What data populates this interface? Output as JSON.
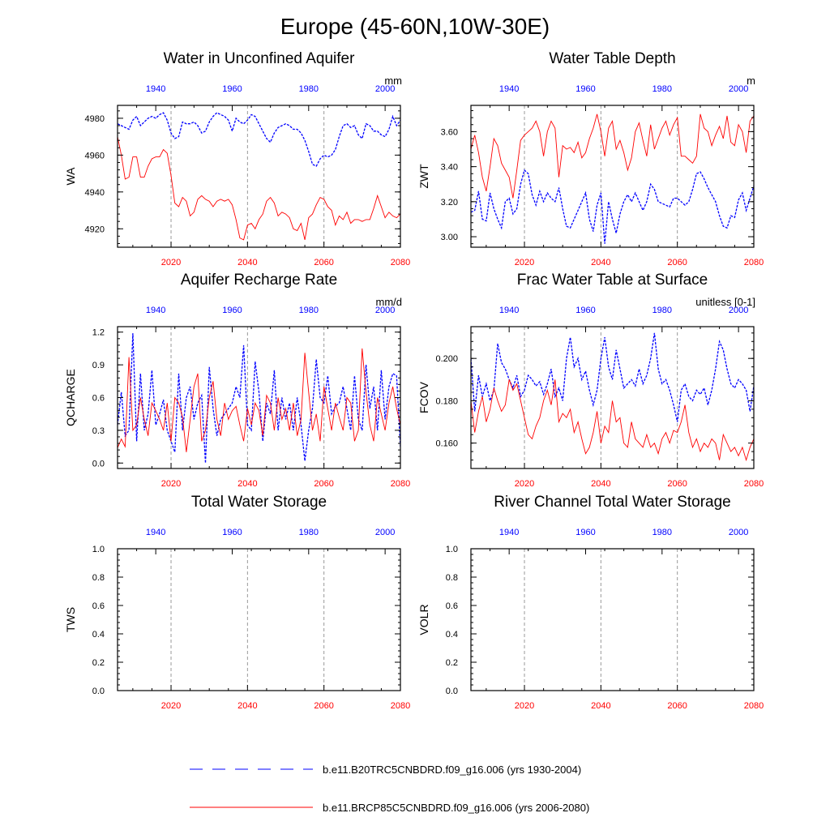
{
  "figure_title": "Europe (45-60N,10W-30E)",
  "colors": {
    "model1": "#0000ff",
    "model2": "#ff0000",
    "axis": "#000000",
    "refline": "#999999"
  },
  "legend": {
    "entries": [
      {
        "label": "b.e11.B20TRC5CNBDRD.f09_g16.006 (yrs 1930-2004)",
        "color": "#0000ff",
        "style": "dashed"
      },
      {
        "label": "b.e11.BRCP85C5CNBDRD.f09_g16.006 (yrs 2006-2080)",
        "color": "#ff0000",
        "style": "solid"
      }
    ]
  },
  "chart_data": [
    {
      "type": "line",
      "title": "Water in Unconfined Aquifer",
      "ylabel": "WA",
      "units": "mm",
      "ylim": [
        4910,
        4987
      ],
      "yticks": [
        4920,
        4940,
        4960,
        4980
      ],
      "bottom_axis": {
        "label_color": "#ff0000",
        "xlim": [
          2006,
          2080
        ],
        "ticks": [
          2020,
          2040,
          2060,
          2080
        ]
      },
      "top_axis": {
        "label_color": "#0000ff",
        "xlim": [
          1930,
          2004
        ],
        "ticks": [
          1940,
          1960,
          1980,
          2000
        ]
      },
      "series": [
        {
          "name": "b.e11.B20TRC5CNBDRD.f09_g16.006 (yrs 1930-2004)",
          "color": "#0000ff",
          "dashed": true,
          "x_start": 1930,
          "values": [
            4977,
            4976,
            4975,
            4974,
            4979,
            4981,
            4976,
            4978,
            4980,
            4981,
            4980,
            4982,
            4983,
            4979,
            4972,
            4969,
            4970,
            4978,
            4977,
            4977,
            4978,
            4976,
            4972,
            4973,
            4978,
            4981,
            4983,
            4982,
            4981,
            4979,
            4973,
            4980,
            4978,
            4977,
            4979,
            4982,
            4981,
            4977,
            4973,
            4969,
            4967,
            4972,
            4975,
            4976,
            4977,
            4976,
            4974,
            4974,
            4972,
            4968,
            4962,
            4955,
            4954,
            4958,
            4960,
            4959,
            4960,
            4963,
            4970,
            4976,
            4977,
            4975,
            4976,
            4971,
            4969,
            4977,
            4976,
            4973,
            4973,
            4971,
            4970,
            4974,
            4981,
            4976,
            4979
          ]
        },
        {
          "name": "b.e11.BRCP85C5CNBDRD.f09_g16.006 (yrs 2006-2080)",
          "color": "#ff0000",
          "dashed": false,
          "x_start": 2006,
          "values": [
            4970,
            4960,
            4947,
            4948,
            4959,
            4959,
            4948,
            4948,
            4954,
            4958,
            4959,
            4959,
            4963,
            4961,
            4949,
            4934,
            4932,
            4937,
            4935,
            4927,
            4929,
            4936,
            4938,
            4936,
            4935,
            4932,
            4935,
            4936,
            4935,
            4936,
            4933,
            4925,
            4915,
            4914,
            4922,
            4923,
            4920,
            4925,
            4928,
            4935,
            4937,
            4934,
            4927,
            4929,
            4928,
            4926,
            4920,
            4919,
            4923,
            4914,
            4926,
            4928,
            4933,
            4937,
            4936,
            4932,
            4930,
            4922,
            4927,
            4925,
            4929,
            4923,
            4925,
            4925,
            4924,
            4925,
            4925,
            4931,
            4938,
            4932,
            4926,
            4929,
            4927,
            4926,
            4928
          ]
        }
      ]
    },
    {
      "type": "line",
      "title": "Water Table Depth",
      "ylabel": "ZWT",
      "units": "m",
      "ylim": [
        2.94,
        3.75
      ],
      "yticks": [
        3.0,
        3.2,
        3.4,
        3.6
      ],
      "ytick_labels": [
        "3.00",
        "3.20",
        "3.40",
        "3.60"
      ],
      "bottom_axis": {
        "label_color": "#ff0000",
        "xlim": [
          2006,
          2080
        ],
        "ticks": [
          2020,
          2040,
          2060,
          2080
        ]
      },
      "top_axis": {
        "label_color": "#0000ff",
        "xlim": [
          1930,
          2004
        ],
        "ticks": [
          1940,
          1960,
          1980,
          2000
        ]
      },
      "series": [
        {
          "name": "b.e11.B20TRC5CNBDRD.f09_g16.006 (yrs 1930-2004)",
          "color": "#0000ff",
          "dashed": true,
          "x_start": 1930,
          "values": [
            3.14,
            3.15,
            3.26,
            3.1,
            3.09,
            3.25,
            3.16,
            3.1,
            3.05,
            3.2,
            3.22,
            3.13,
            3.16,
            3.3,
            3.38,
            3.36,
            3.24,
            3.18,
            3.26,
            3.2,
            3.25,
            3.22,
            3.2,
            3.28,
            3.16,
            3.06,
            3.05,
            3.1,
            3.15,
            3.2,
            3.25,
            3.1,
            3.03,
            3.18,
            3.25,
            2.96,
            3.2,
            3.1,
            3.02,
            3.13,
            3.2,
            3.24,
            3.2,
            3.25,
            3.2,
            3.15,
            3.2,
            3.3,
            3.27,
            3.2,
            3.19,
            3.18,
            3.17,
            3.22,
            3.22,
            3.2,
            3.18,
            3.2,
            3.27,
            3.36,
            3.37,
            3.33,
            3.28,
            3.24,
            3.2,
            3.12,
            3.06,
            3.05,
            3.12,
            3.11,
            3.21,
            3.25,
            3.15,
            3.22,
            3.29
          ]
        },
        {
          "name": "b.e11.BRCP85C5CNBDRD.f09_g16.006 (yrs 2006-2080)",
          "color": "#ff0000",
          "dashed": false,
          "x_start": 2006,
          "values": [
            3.5,
            3.58,
            3.48,
            3.34,
            3.26,
            3.4,
            3.56,
            3.52,
            3.42,
            3.38,
            3.34,
            3.22,
            3.38,
            3.55,
            3.58,
            3.6,
            3.62,
            3.66,
            3.6,
            3.46,
            3.6,
            3.66,
            3.62,
            3.34,
            3.52,
            3.5,
            3.51,
            3.48,
            3.54,
            3.45,
            3.48,
            3.56,
            3.62,
            3.7,
            3.6,
            3.46,
            3.62,
            3.66,
            3.5,
            3.55,
            3.48,
            3.38,
            3.45,
            3.6,
            3.65,
            3.55,
            3.46,
            3.64,
            3.5,
            3.56,
            3.62,
            3.66,
            3.58,
            3.64,
            3.68,
            3.46,
            3.46,
            3.44,
            3.42,
            3.46,
            3.7,
            3.62,
            3.6,
            3.52,
            3.58,
            3.63,
            3.56,
            3.69,
            3.54,
            3.52,
            3.64,
            3.6,
            3.48,
            3.66,
            3.69
          ]
        }
      ]
    },
    {
      "type": "line",
      "title": "Aquifer Recharge Rate",
      "ylabel": "QCHARGE",
      "units": "mm/d",
      "ylim": [
        -0.05,
        1.25
      ],
      "yticks": [
        0.0,
        0.3,
        0.6,
        0.9,
        1.2
      ],
      "ytick_labels": [
        "0.0",
        "0.3",
        "0.6",
        "0.9",
        "1.2"
      ],
      "bottom_axis": {
        "label_color": "#ff0000",
        "xlim": [
          2006,
          2080
        ],
        "ticks": [
          2020,
          2040,
          2060,
          2080
        ]
      },
      "top_axis": {
        "label_color": "#0000ff",
        "xlim": [
          1930,
          2004
        ],
        "ticks": [
          1940,
          1960,
          1980,
          2000
        ]
      },
      "series": [
        {
          "name": "b.e11.B20TRC5CNBDRD.f09_g16.006 (yrs 1930-2004)",
          "color": "#0000ff",
          "dashed": true,
          "x_start": 1930,
          "values": [
            0.35,
            0.65,
            0.25,
            0.3,
            1.19,
            0.2,
            0.82,
            0.3,
            0.45,
            0.85,
            0.35,
            0.45,
            0.58,
            0.3,
            0.2,
            0.1,
            0.82,
            0.3,
            0.6,
            0.7,
            0.4,
            0.55,
            0.62,
            0.0,
            0.88,
            0.5,
            0.25,
            0.4,
            0.45,
            0.5,
            0.55,
            0.7,
            0.6,
            1.08,
            0.35,
            0.3,
            0.93,
            0.65,
            0.2,
            0.55,
            0.45,
            0.85,
            0.3,
            0.6,
            0.4,
            0.55,
            0.3,
            0.6,
            0.35,
            0.02,
            0.3,
            0.5,
            0.95,
            0.6,
            0.55,
            0.8,
            0.45,
            0.52,
            0.55,
            0.7,
            0.5,
            0.3,
            0.8,
            0.4,
            0.3,
            0.9,
            0.5,
            0.7,
            0.3,
            0.85,
            0.4,
            0.7,
            0.82,
            0.8,
            0.15
          ]
        },
        {
          "name": "b.e11.BRCP85C5CNBDRD.f09_g16.006 (yrs 2006-2080)",
          "color": "#ff0000",
          "dashed": false,
          "x_start": 2006,
          "values": [
            0.14,
            0.22,
            0.15,
            0.97,
            0.3,
            0.35,
            0.6,
            0.4,
            0.25,
            0.55,
            0.48,
            0.4,
            0.3,
            0.55,
            0.2,
            0.6,
            0.55,
            0.42,
            0.1,
            0.4,
            0.7,
            0.82,
            0.2,
            0.3,
            0.6,
            0.75,
            0.4,
            0.25,
            0.55,
            0.4,
            0.48,
            0.52,
            0.35,
            0.2,
            0.5,
            0.35,
            0.55,
            0.48,
            0.25,
            0.62,
            0.55,
            0.3,
            0.6,
            0.4,
            0.5,
            0.3,
            0.55,
            0.25,
            0.4,
            1.01,
            0.65,
            0.3,
            0.45,
            0.2,
            0.7,
            0.5,
            0.3,
            0.55,
            0.42,
            0.3,
            0.6,
            0.55,
            0.2,
            0.3,
            1.05,
            0.65,
            0.35,
            0.2,
            0.6,
            0.45,
            0.3,
            0.55,
            0.7,
            0.5,
            0.35
          ]
        }
      ]
    },
    {
      "type": "line",
      "title": "Frac Water Table at Surface",
      "ylabel": "FCOV",
      "units": "unitless [0-1]",
      "ylim": [
        0.148,
        0.215
      ],
      "yticks": [
        0.16,
        0.18,
        0.2
      ],
      "ytick_labels": [
        "0.160",
        "0.180",
        "0.200"
      ],
      "bottom_axis": {
        "label_color": "#ff0000",
        "xlim": [
          2006,
          2080
        ],
        "ticks": [
          2020,
          2040,
          2060,
          2080
        ]
      },
      "top_axis": {
        "label_color": "#0000ff",
        "xlim": [
          1930,
          2004
        ],
        "ticks": [
          1940,
          1960,
          1980,
          2000
        ]
      },
      "series": [
        {
          "name": "b.e11.B20TRC5CNBDRD.f09_g16.006 (yrs 1930-2004)",
          "color": "#0000ff",
          "dashed": true,
          "x_start": 1930,
          "values": [
            0.2,
            0.175,
            0.192,
            0.182,
            0.188,
            0.18,
            0.185,
            0.207,
            0.198,
            0.195,
            0.19,
            0.186,
            0.192,
            0.182,
            0.185,
            0.192,
            0.19,
            0.187,
            0.189,
            0.183,
            0.188,
            0.195,
            0.182,
            0.186,
            0.18,
            0.2,
            0.21,
            0.196,
            0.2,
            0.19,
            0.194,
            0.185,
            0.178,
            0.185,
            0.2,
            0.21,
            0.196,
            0.19,
            0.204,
            0.195,
            0.186,
            0.188,
            0.19,
            0.187,
            0.195,
            0.188,
            0.192,
            0.2,
            0.212,
            0.195,
            0.188,
            0.19,
            0.185,
            0.178,
            0.17,
            0.185,
            0.188,
            0.182,
            0.18,
            0.185,
            0.183,
            0.186,
            0.178,
            0.185,
            0.195,
            0.208,
            0.204,
            0.195,
            0.188,
            0.186,
            0.19,
            0.188,
            0.185,
            0.175,
            0.187
          ]
        },
        {
          "name": "b.e11.BRCP85C5CNBDRD.f09_g16.006 (yrs 2006-2080)",
          "color": "#ff0000",
          "dashed": false,
          "x_start": 2006,
          "values": [
            0.18,
            0.165,
            0.175,
            0.182,
            0.17,
            0.176,
            0.186,
            0.18,
            0.175,
            0.178,
            0.19,
            0.185,
            0.188,
            0.18,
            0.172,
            0.164,
            0.162,
            0.168,
            0.172,
            0.18,
            0.185,
            0.178,
            0.19,
            0.17,
            0.174,
            0.172,
            0.176,
            0.165,
            0.17,
            0.162,
            0.155,
            0.158,
            0.165,
            0.175,
            0.16,
            0.168,
            0.165,
            0.18,
            0.17,
            0.172,
            0.16,
            0.158,
            0.17,
            0.162,
            0.16,
            0.158,
            0.164,
            0.158,
            0.16,
            0.155,
            0.162,
            0.165,
            0.16,
            0.166,
            0.165,
            0.17,
            0.178,
            0.165,
            0.158,
            0.162,
            0.156,
            0.16,
            0.158,
            0.162,
            0.16,
            0.152,
            0.164,
            0.16,
            0.156,
            0.158,
            0.154,
            0.158,
            0.152,
            0.158,
            0.162
          ]
        }
      ]
    },
    {
      "type": "line",
      "title": "Total Water Storage",
      "ylabel": "TWS",
      "units": "",
      "ylim": [
        0.0,
        1.0
      ],
      "yticks": [
        0.0,
        0.2,
        0.4,
        0.6,
        0.8,
        1.0
      ],
      "ytick_labels": [
        "0.0",
        "0.2",
        "0.4",
        "0.6",
        "0.8",
        "1.0"
      ],
      "bottom_axis": {
        "label_color": "#ff0000",
        "xlim": [
          2006,
          2080
        ],
        "ticks": [
          2020,
          2040,
          2060,
          2080
        ]
      },
      "top_axis": {
        "label_color": "#0000ff",
        "xlim": [
          1930,
          2004
        ],
        "ticks": [
          1940,
          1960,
          1980,
          2000
        ]
      },
      "series": []
    },
    {
      "type": "line",
      "title": "River Channel Total Water Storage",
      "ylabel": "VOLR",
      "units": "",
      "ylim": [
        0.0,
        1.0
      ],
      "yticks": [
        0.0,
        0.2,
        0.4,
        0.6,
        0.8,
        1.0
      ],
      "ytick_labels": [
        "0.0",
        "0.2",
        "0.4",
        "0.6",
        "0.8",
        "1.0"
      ],
      "bottom_axis": {
        "label_color": "#ff0000",
        "xlim": [
          2006,
          2080
        ],
        "ticks": [
          2020,
          2040,
          2060,
          2080
        ]
      },
      "top_axis": {
        "label_color": "#0000ff",
        "xlim": [
          1930,
          2004
        ],
        "ticks": [
          1940,
          1960,
          1980,
          2000
        ]
      },
      "series": []
    }
  ]
}
